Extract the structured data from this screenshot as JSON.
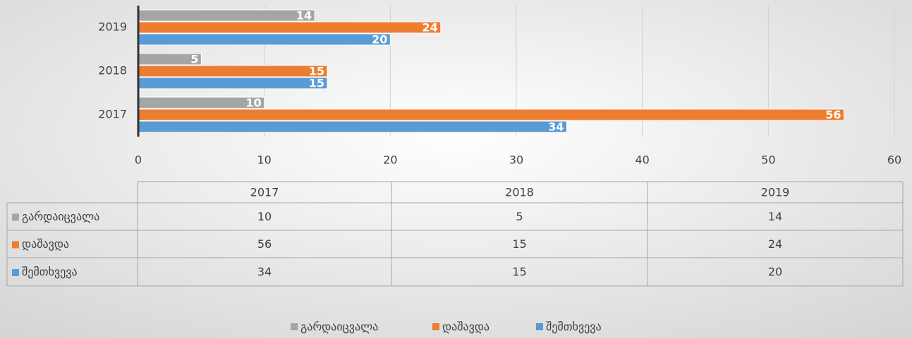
{
  "chart_data": {
    "type": "bar",
    "orientation": "horizontal",
    "categories": [
      "2017",
      "2018",
      "2019"
    ],
    "series": [
      {
        "name": "გარდაიცვალა",
        "color": "#a5a5a5",
        "values": [
          10,
          5,
          14
        ]
      },
      {
        "name": "დაშავდა",
        "color": "#ed7d31",
        "values": [
          56,
          15,
          24
        ]
      },
      {
        "name": "შემთხვევა",
        "color": "#5b9bd5",
        "values": [
          34,
          15,
          20
        ]
      }
    ],
    "xlim": [
      0,
      60
    ],
    "xticks": [
      0,
      10,
      20,
      30,
      40,
      50,
      60
    ],
    "grid": true,
    "legend": "bottom",
    "data_table": true
  }
}
